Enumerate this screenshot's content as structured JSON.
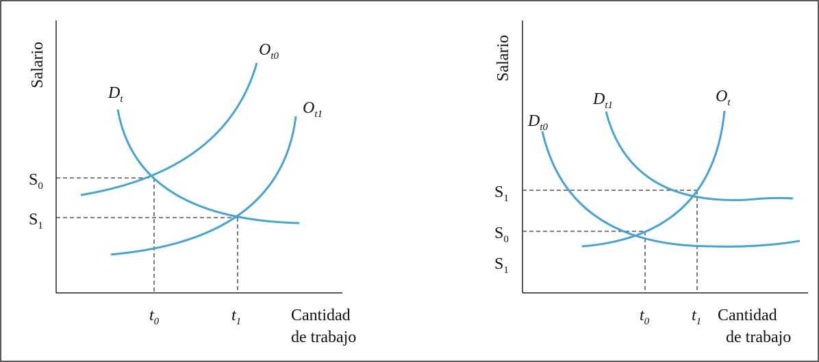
{
  "panels": [
    {
      "y_axis_label": "Salario",
      "x_axis_label": {
        "line1": "Cantidad",
        "line2": "de trabajo"
      },
      "curves": [
        {
          "main": "O",
          "sub": "t0"
        },
        {
          "main": "D",
          "sub": "t"
        },
        {
          "main": "O",
          "sub": "t1"
        }
      ],
      "y_ticks": [
        {
          "main": "S",
          "sub": "0"
        },
        {
          "main": "S",
          "sub": "1"
        }
      ],
      "x_ticks": [
        {
          "main": "t",
          "sub": "0"
        },
        {
          "main": "t",
          "sub": "1"
        }
      ]
    },
    {
      "y_axis_label": "Salario",
      "x_axis_label": {
        "line1": "Cantidad",
        "line2": "de trabajo"
      },
      "curves": [
        {
          "main": "D",
          "sub": "t0"
        },
        {
          "main": "D",
          "sub": "t1"
        },
        {
          "main": "O",
          "sub": "t"
        }
      ],
      "y_ticks": [
        {
          "main": "S",
          "sub": "1"
        },
        {
          "main": "S",
          "sub": "0"
        },
        {
          "main": "S",
          "sub": "1"
        }
      ],
      "x_ticks": [
        {
          "main": "t",
          "sub": "0"
        },
        {
          "main": "t",
          "sub": "1"
        }
      ]
    }
  ]
}
